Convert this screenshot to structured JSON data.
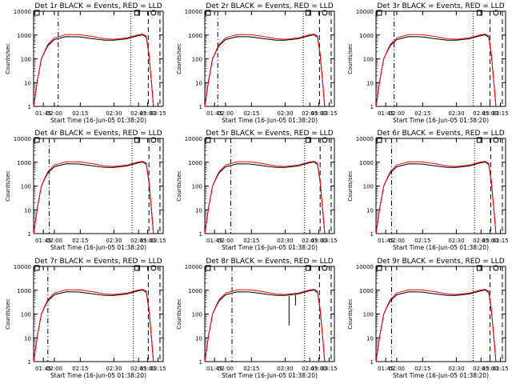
{
  "chart_data": [
    {
      "type": "line",
      "title": "Det 1r BLACK = Events, RED = LLD",
      "xlabel": "Start Time (16-Jun-05 01:38:20)",
      "ylabel": "Counts/sec",
      "yscale": "log",
      "ylim": [
        1,
        10000
      ],
      "xticks": [
        "01:45",
        "02:00",
        "02:15",
        "02:30",
        "02:45",
        "03:00",
        "03:15"
      ],
      "yticks": [
        "1",
        "10",
        "100",
        "1000",
        "10000"
      ],
      "series": [
        {
          "name": "Events",
          "color": "#000000"
        },
        {
          "name": "LLD",
          "color": "#ff0000"
        }
      ],
      "markers": {
        "square": "□",
        "circle": "○"
      }
    },
    {
      "type": "line",
      "title": "Det 2r BLACK = Events, RED = LLD",
      "xlabel": "Start Time (16-Jun-05 01:38:20)",
      "ylabel": "Counts/sec",
      "yscale": "log",
      "ylim": [
        1,
        10000
      ],
      "xticks": [
        "01:45",
        "02:00",
        "02:15",
        "02:30",
        "02:45",
        "03:00",
        "03:15"
      ],
      "yticks": [
        "1",
        "10",
        "100",
        "1000",
        "10000"
      ],
      "series": [
        {
          "name": "Events",
          "color": "#000000"
        },
        {
          "name": "LLD",
          "color": "#ff0000"
        }
      ],
      "markers": {
        "square": "□",
        "circle": "○"
      }
    },
    {
      "type": "line",
      "title": "Det 3r BLACK = Events, RED = LLD",
      "xlabel": "Start Time (16-Jun-05 01:38:20)",
      "ylabel": "Counts/sec",
      "yscale": "log",
      "ylim": [
        1,
        10000
      ],
      "xticks": [
        "01:45",
        "02:00",
        "02:15",
        "02:30",
        "02:45",
        "03:00",
        "03:15"
      ],
      "yticks": [
        "1",
        "10",
        "100",
        "1000",
        "10000"
      ],
      "series": [
        {
          "name": "Events",
          "color": "#000000"
        },
        {
          "name": "LLD",
          "color": "#ff0000"
        }
      ],
      "markers": {
        "square": "□",
        "circle": "○"
      }
    },
    {
      "type": "line",
      "title": "Det 4r BLACK = Events, RED = LLD",
      "xlabel": "Start Time (16-Jun-05 01:38:20)",
      "ylabel": "Counts/sec",
      "yscale": "log",
      "ylim": [
        1,
        10000
      ],
      "xticks": [
        "01:45",
        "02:00",
        "02:15",
        "02:30",
        "02:45",
        "03:00",
        "03:15"
      ],
      "yticks": [
        "1",
        "10",
        "100",
        "1000",
        "10000"
      ],
      "series": [
        {
          "name": "Events",
          "color": "#000000"
        },
        {
          "name": "LLD",
          "color": "#ff0000"
        }
      ],
      "markers": {
        "square": "□",
        "circle": "○"
      }
    },
    {
      "type": "line",
      "title": "Det 5r BLACK = Events, RED = LLD",
      "xlabel": "Start Time (16-Jun-05 01:38:20)",
      "ylabel": "Counts/sec",
      "yscale": "log",
      "ylim": [
        1,
        10000
      ],
      "xticks": [
        "01:45",
        "02:00",
        "02:15",
        "02:30",
        "02:45",
        "03:00",
        "03:15"
      ],
      "yticks": [
        "1",
        "10",
        "100",
        "1000",
        "10000"
      ],
      "series": [
        {
          "name": "Events",
          "color": "#000000"
        },
        {
          "name": "LLD",
          "color": "#ff0000"
        }
      ],
      "markers": {
        "square": "□",
        "circle": "○"
      }
    },
    {
      "type": "line",
      "title": "Det 6r BLACK = Events, RED = LLD",
      "xlabel": "Start Time (16-Jun-05 01:38:20)",
      "ylabel": "Counts/sec",
      "yscale": "log",
      "ylim": [
        1,
        10000
      ],
      "xticks": [
        "01:45",
        "02:00",
        "02:15",
        "02:30",
        "02:45",
        "03:00",
        "03:15"
      ],
      "yticks": [
        "1",
        "10",
        "100",
        "1000",
        "10000"
      ],
      "series": [
        {
          "name": "Events",
          "color": "#000000"
        },
        {
          "name": "LLD",
          "color": "#ff0000"
        }
      ],
      "markers": {
        "square": "□",
        "circle": "○"
      }
    },
    {
      "type": "line",
      "title": "Det 7r BLACK = Events, RED = LLD",
      "xlabel": "Start Time (16-Jun-05 01:38:20)",
      "ylabel": "Counts/sec",
      "yscale": "log",
      "ylim": [
        1,
        10000
      ],
      "xticks": [
        "01:45",
        "02:00",
        "02:15",
        "02:30",
        "02:45",
        "03:00",
        "03:15"
      ],
      "yticks": [
        "1",
        "10",
        "100",
        "1000",
        "10000"
      ],
      "series": [
        {
          "name": "Events",
          "color": "#000000"
        },
        {
          "name": "LLD",
          "color": "#ff0000"
        }
      ],
      "markers": {
        "square": "□",
        "circle": "○"
      }
    },
    {
      "type": "line",
      "title": "Det 8r BLACK = Events, RED = LLD",
      "xlabel": "Start Time (16-Jun-05 01:38:20)",
      "ylabel": "Counts/sec",
      "yscale": "log",
      "ylim": [
        1,
        10000
      ],
      "xticks": [
        "01:45",
        "02:00",
        "02:15",
        "02:30",
        "02:45",
        "03:00",
        "03:15"
      ],
      "yticks": [
        "1",
        "10",
        "100",
        "1000",
        "10000"
      ],
      "series": [
        {
          "name": "Events",
          "color": "#000000"
        },
        {
          "name": "LLD",
          "color": "#ff0000"
        }
      ],
      "markers": {
        "square": "□",
        "circle": "○"
      }
    },
    {
      "type": "line",
      "title": "Det 9r BLACK = Events, RED = LLD",
      "xlabel": "Start Time (16-Jun-05 01:38:20)",
      "ylabel": "Counts/sec",
      "yscale": "log",
      "ylim": [
        1,
        10000
      ],
      "xticks": [
        "01:45",
        "02:00",
        "02:15",
        "02:30",
        "02:45",
        "03:00",
        "03:15"
      ],
      "yticks": [
        "1",
        "10",
        "100",
        "1000",
        "10000"
      ],
      "series": [
        {
          "name": "Events",
          "color": "#000000"
        },
        {
          "name": "LLD",
          "color": "#ff0000"
        }
      ],
      "markers": {
        "square": "□",
        "circle": "○"
      }
    }
  ]
}
